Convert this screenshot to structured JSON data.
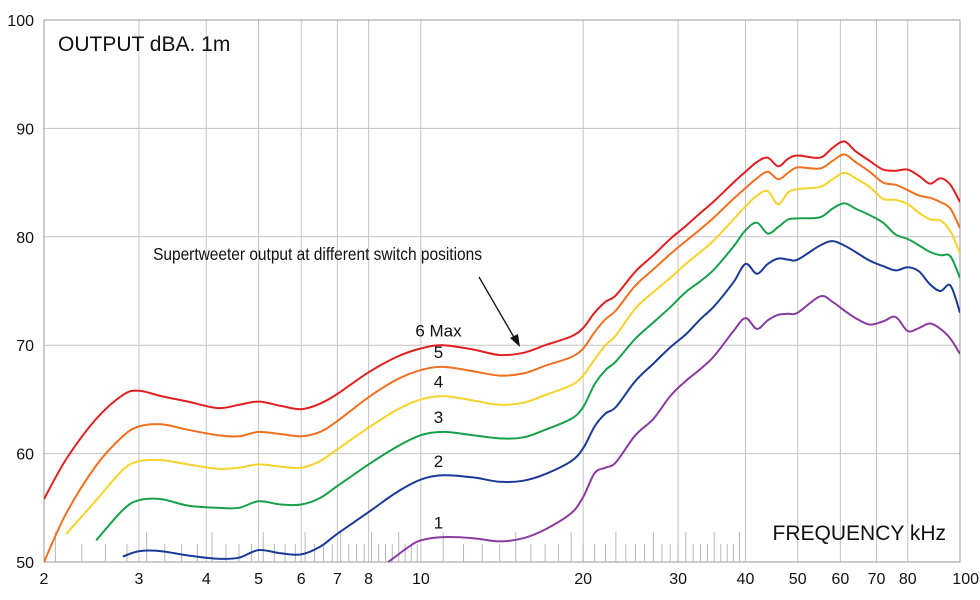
{
  "chart_data": {
    "type": "line",
    "title": "OUTPUT dBA. 1m",
    "xlabel": "FREQUENCY kHz",
    "ylabel": "",
    "x_scale": "log",
    "xlim": [
      2,
      100
    ],
    "ylim": [
      50,
      100
    ],
    "x_ticks": [
      2,
      3,
      4,
      5,
      6,
      7,
      8,
      10,
      20,
      30,
      40,
      50,
      60,
      70,
      80,
      100
    ],
    "x_tick_labels": [
      "2",
      "3",
      "4",
      "5",
      "6",
      "7",
      "8",
      "10",
      "20",
      "30",
      "40",
      "50",
      "60",
      "70",
      "80",
      "100"
    ],
    "y_ticks": [
      50,
      60,
      70,
      80,
      90,
      100
    ],
    "y_tick_labels": [
      "50",
      "60",
      "70",
      "80",
      "90",
      "100"
    ],
    "grid": true,
    "annotation": "Supertweeter output at different switch positions",
    "series": [
      {
        "name": "6 Max",
        "color": "#e02020",
        "x": [
          2.0,
          2.2,
          2.5,
          2.8,
          3.0,
          3.3,
          3.7,
          4.2,
          4.6,
          5.0,
          5.5,
          6.0,
          6.5,
          7.0,
          8.0,
          9.0,
          10.0,
          11.0,
          12.5,
          14.0,
          15.5,
          17.0,
          19.0,
          20.0,
          21.0,
          22.0,
          23.0,
          25.0,
          27.0,
          29.0,
          31.0,
          33.0,
          35.0,
          38.0,
          40.0,
          42.0,
          44.0,
          46.0,
          48.0,
          50.0,
          55.0,
          58.0,
          61.0,
          64.0,
          68.0,
          72.0,
          76.0,
          80.0,
          84.0,
          88.0,
          92.0,
          96.0,
          100.0
        ],
        "y": [
          55.8,
          59.5,
          63.2,
          65.4,
          65.8,
          65.3,
          64.8,
          64.2,
          64.5,
          64.8,
          64.4,
          64.1,
          64.6,
          65.5,
          67.5,
          68.9,
          69.7,
          70.0,
          69.6,
          69.1,
          69.3,
          70.0,
          70.8,
          71.6,
          73.0,
          74.0,
          74.6,
          76.8,
          78.3,
          79.8,
          81.0,
          82.2,
          83.3,
          85.0,
          86.0,
          86.9,
          87.3,
          86.5,
          87.2,
          87.5,
          87.3,
          88.2,
          88.8,
          87.9,
          87.0,
          86.2,
          86.1,
          86.2,
          85.6,
          84.9,
          85.4,
          84.8,
          83.2
        ]
      },
      {
        "name": "5",
        "color": "#f07020",
        "x": [
          2.0,
          2.2,
          2.5,
          2.8,
          3.0,
          3.3,
          3.7,
          4.2,
          4.6,
          5.0,
          5.5,
          6.0,
          6.5,
          7.0,
          8.0,
          9.0,
          10.0,
          11.0,
          12.5,
          14.0,
          15.5,
          17.0,
          19.0,
          20.0,
          21.0,
          22.0,
          23.0,
          25.0,
          27.0,
          29.0,
          31.0,
          33.0,
          35.0,
          38.0,
          40.0,
          42.0,
          44.0,
          46.0,
          48.0,
          50.0,
          55.0,
          58.0,
          61.0,
          64.0,
          68.0,
          72.0,
          76.0,
          80.0,
          84.0,
          88.0,
          92.0,
          96.0,
          100.0
        ],
        "y": [
          50.0,
          54.5,
          58.9,
          61.6,
          62.5,
          62.7,
          62.2,
          61.7,
          61.6,
          62.0,
          61.8,
          61.6,
          62.0,
          63.0,
          65.2,
          66.8,
          67.7,
          68.0,
          67.6,
          67.2,
          67.4,
          68.1,
          68.9,
          69.7,
          71.2,
          72.4,
          73.2,
          75.5,
          77.0,
          78.4,
          79.6,
          80.7,
          81.8,
          83.5,
          84.5,
          85.4,
          86.0,
          85.3,
          85.9,
          86.4,
          86.3,
          87.0,
          87.6,
          86.9,
          86.0,
          85.0,
          84.8,
          84.3,
          83.8,
          83.6,
          83.2,
          82.6,
          80.8
        ]
      },
      {
        "name": "4",
        "color": "#f7d22a",
        "x": [
          2.2,
          2.5,
          2.8,
          3.0,
          3.3,
          3.7,
          4.2,
          4.6,
          5.0,
          5.5,
          6.0,
          6.5,
          7.0,
          8.0,
          9.0,
          10.0,
          11.0,
          12.5,
          14.0,
          15.5,
          17.0,
          19.0,
          20.0,
          21.0,
          22.0,
          23.0,
          25.0,
          27.0,
          29.0,
          31.0,
          33.0,
          35.0,
          38.0,
          40.0,
          42.0,
          44.0,
          46.0,
          48.0,
          50.0,
          55.0,
          58.0,
          61.0,
          64.0,
          68.0,
          72.0,
          76.0,
          80.0,
          84.0,
          88.0,
          92.0,
          96.0,
          100.0
        ],
        "y": [
          52.6,
          55.7,
          58.5,
          59.3,
          59.4,
          59.0,
          58.6,
          58.7,
          59.0,
          58.8,
          58.7,
          59.3,
          60.4,
          62.4,
          64.0,
          65.0,
          65.3,
          64.9,
          64.5,
          64.7,
          65.4,
          66.3,
          67.2,
          68.7,
          70.0,
          70.9,
          73.4,
          74.9,
          76.2,
          77.5,
          78.6,
          79.7,
          81.6,
          82.8,
          83.8,
          84.2,
          83.0,
          84.1,
          84.4,
          84.6,
          85.3,
          85.9,
          85.4,
          84.6,
          83.5,
          83.4,
          83.0,
          82.2,
          81.6,
          81.5,
          80.5,
          78.5
        ]
      },
      {
        "name": "3",
        "color": "#17a04a",
        "x": [
          2.5,
          2.8,
          3.0,
          3.3,
          3.7,
          4.2,
          4.6,
          5.0,
          5.5,
          6.0,
          6.5,
          7.0,
          8.0,
          9.0,
          10.0,
          11.0,
          12.5,
          14.0,
          15.5,
          17.0,
          19.0,
          20.0,
          21.0,
          22.0,
          23.0,
          25.0,
          27.0,
          29.0,
          31.0,
          33.0,
          35.0,
          38.0,
          40.0,
          42.0,
          44.0,
          46.0,
          48.0,
          50.0,
          55.0,
          58.0,
          61.0,
          64.0,
          68.0,
          72.0,
          76.0,
          80.0,
          84.0,
          88.0,
          92.0,
          96.0,
          100.0
        ],
        "y": [
          52.0,
          54.8,
          55.7,
          55.8,
          55.2,
          55.0,
          55.0,
          55.6,
          55.3,
          55.3,
          55.9,
          57.0,
          59.0,
          60.6,
          61.7,
          62.0,
          61.7,
          61.4,
          61.5,
          62.2,
          63.2,
          64.3,
          66.4,
          67.7,
          68.5,
          70.6,
          72.1,
          73.5,
          74.9,
          75.9,
          77.0,
          79.1,
          80.6,
          81.3,
          80.3,
          80.9,
          81.6,
          81.7,
          81.8,
          82.6,
          83.1,
          82.6,
          82.0,
          81.3,
          80.2,
          79.8,
          79.2,
          78.6,
          78.3,
          78.2,
          76.2
        ]
      },
      {
        "name": "2",
        "color": "#1a3a98",
        "x": [
          2.8,
          3.0,
          3.3,
          3.7,
          4.2,
          4.6,
          5.0,
          5.5,
          6.0,
          6.5,
          7.0,
          8.0,
          9.0,
          10.0,
          11.0,
          12.5,
          14.0,
          15.5,
          17.0,
          19.0,
          20.0,
          21.0,
          22.0,
          23.0,
          25.0,
          27.0,
          29.0,
          31.0,
          33.0,
          35.0,
          38.0,
          40.0,
          42.0,
          44.0,
          46.0,
          48.0,
          50.0,
          55.0,
          58.0,
          61.0,
          64.0,
          68.0,
          72.0,
          76.0,
          80.0,
          84.0,
          88.0,
          92.0,
          96.0,
          100.0
        ],
        "y": [
          50.5,
          51.0,
          51.0,
          50.6,
          50.3,
          50.4,
          51.1,
          50.8,
          50.7,
          51.4,
          52.6,
          54.6,
          56.4,
          57.6,
          58.0,
          57.8,
          57.4,
          57.5,
          58.1,
          59.3,
          60.5,
          62.5,
          63.7,
          64.3,
          66.7,
          68.3,
          69.8,
          71.0,
          72.4,
          73.6,
          75.8,
          77.5,
          76.6,
          77.5,
          78.0,
          77.9,
          77.9,
          79.2,
          79.6,
          79.2,
          78.6,
          77.8,
          77.3,
          76.9,
          77.2,
          76.8,
          75.6,
          75.0,
          75.5,
          73.0
        ]
      },
      {
        "name": "1",
        "color": "#8a3aa0",
        "x": [
          8.7,
          9.5,
          10.0,
          11.0,
          12.5,
          14.0,
          15.5,
          17.0,
          19.0,
          20.0,
          21.0,
          22.0,
          23.0,
          25.0,
          27.0,
          29.0,
          31.0,
          33.0,
          35.0,
          38.0,
          40.0,
          42.0,
          44.0,
          46.0,
          48.0,
          50.0,
          55.0,
          58.0,
          61.0,
          64.0,
          68.0,
          72.0,
          76.0,
          80.0,
          84.0,
          88.0,
          92.0,
          96.0,
          100.0
        ],
        "y": [
          50.0,
          51.4,
          52.0,
          52.3,
          52.2,
          51.9,
          52.2,
          53.0,
          54.5,
          56.0,
          58.2,
          58.7,
          59.2,
          61.7,
          63.2,
          65.3,
          66.7,
          67.8,
          69.0,
          71.3,
          72.5,
          71.5,
          72.3,
          72.8,
          72.9,
          73.0,
          74.5,
          74.0,
          73.2,
          72.5,
          71.9,
          72.2,
          72.6,
          71.3,
          71.6,
          72.0,
          71.5,
          70.6,
          69.2
        ]
      }
    ]
  }
}
